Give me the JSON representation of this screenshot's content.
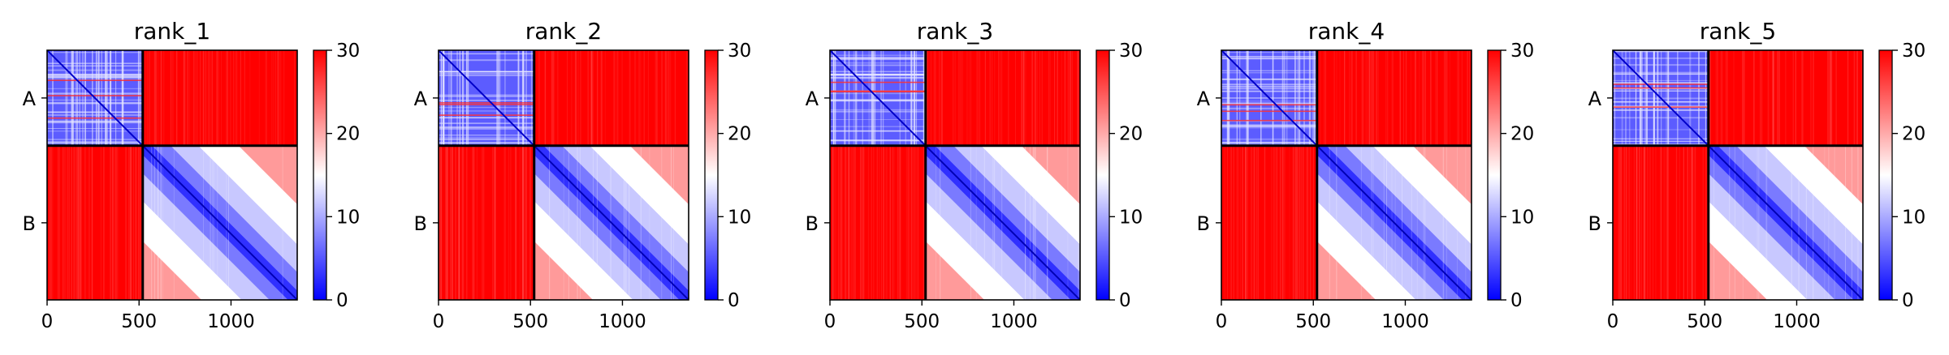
{
  "chart_data": {
    "type": "heatmap",
    "colormap": [
      "#0000ff",
      "#ffffff",
      "#ff0000"
    ],
    "colorbar": {
      "range": [
        0,
        30
      ],
      "ticks": [
        0,
        10,
        20,
        30
      ]
    },
    "x_range": [
      0,
      1360
    ],
    "x_ticks": [
      0,
      500,
      1000
    ],
    "chain_boundary": 520,
    "chains": [
      {
        "label": "A",
        "start": 0,
        "end": 520
      },
      {
        "label": "B",
        "start": 520,
        "end": 1360
      }
    ],
    "panels": [
      {
        "title": "rank_1"
      },
      {
        "title": "rank_2"
      },
      {
        "title": "rank_3"
      },
      {
        "title": "rank_4"
      },
      {
        "title": "rank_5"
      }
    ]
  }
}
